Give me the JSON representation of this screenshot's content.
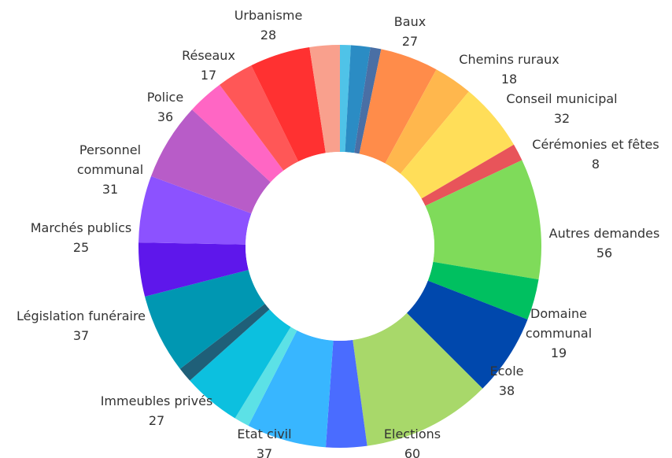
{
  "chart_data": {
    "type": "pie",
    "variant": "donut",
    "start_angle_deg": 0,
    "direction": "clockwise",
    "segments": [
      {
        "label": "",
        "value": 5,
        "color": "#4fc3e8"
      },
      {
        "label": "",
        "value": 9,
        "color": "#2b8cc4"
      },
      {
        "label": "",
        "value": 5,
        "color": "#4a6fa5"
      },
      {
        "label": "Baux",
        "value": 27,
        "color": "#ff8c4a"
      },
      {
        "label": "Chemins ruraux",
        "value": 18,
        "color": "#ffb74d"
      },
      {
        "label": "Conseil municipal",
        "value": 32,
        "color": "#ffde59"
      },
      {
        "label": "",
        "value": 0,
        "color": "#ffde59"
      },
      {
        "label": "Cérémonies et fêtes",
        "value": 8,
        "color": "#e8545a"
      },
      {
        "label": "Autres demandes",
        "value": 56,
        "color": "#7fdb5a"
      },
      {
        "label": "Domaine communal",
        "value": 19,
        "color": "#00c060"
      },
      {
        "label": "Ecole",
        "value": 38,
        "color": "#0048ad"
      },
      {
        "label": "Elections",
        "value": 60,
        "color": "#a8d86a"
      },
      {
        "label": "",
        "value": 19,
        "color": "#4a6cff"
      },
      {
        "label": "Etat civil",
        "value": 37,
        "color": "#38b6ff"
      },
      {
        "label": "",
        "value": 7,
        "color": "#5ce1e6"
      },
      {
        "label": "Immeubles privés",
        "value": 27,
        "color": "#0cc0df"
      },
      {
        "label": "",
        "value": 7,
        "color": "#1f5f78"
      },
      {
        "label": "Législation funéraire",
        "value": 37,
        "color": "#0097b2"
      },
      {
        "label": "Marchés publics",
        "value": 25,
        "color": "#5e17eb"
      },
      {
        "label": "Personnel communal",
        "value": 31,
        "color": "#8c52ff"
      },
      {
        "label": "Police",
        "value": 36,
        "color": "#b85cc8"
      },
      {
        "label": "",
        "value": 17,
        "color": "#ff66c4"
      },
      {
        "label": "Réseaux",
        "value": 17,
        "color": "#ff5757"
      },
      {
        "label": "Urbanisme",
        "value": 28,
        "color": "#ff3131"
      },
      {
        "label": "",
        "value": 14,
        "color": "#f9a08d"
      }
    ],
    "labels": [
      {
        "lines": [
          "Urbanisme",
          "28"
        ]
      },
      {
        "lines": [
          "Baux",
          "27"
        ]
      },
      {
        "lines": [
          "Réseaux",
          "17"
        ]
      },
      {
        "lines": [
          "Chemins ruraux",
          "18"
        ]
      },
      {
        "lines": [
          "Police",
          "36"
        ]
      },
      {
        "lines": [
          "Conseil municipal",
          "32"
        ]
      },
      {
        "lines": [
          "Personnel",
          "communal",
          "31"
        ]
      },
      {
        "lines": [
          "Cérémonies et fêtes",
          "8"
        ]
      },
      {
        "lines": [
          "Marchés publics",
          "25"
        ]
      },
      {
        "lines": [
          "Autres demandes",
          "56"
        ]
      },
      {
        "lines": [
          "Législation funéraire",
          "37"
        ]
      },
      {
        "lines": [
          "Domaine",
          "communal",
          "19"
        ]
      },
      {
        "lines": [
          "Ecole",
          "38"
        ]
      },
      {
        "lines": [
          "Immeubles privés",
          "27"
        ]
      },
      {
        "lines": [
          "Etat civil",
          "37"
        ]
      },
      {
        "lines": [
          "Elections",
          "60"
        ]
      }
    ]
  }
}
